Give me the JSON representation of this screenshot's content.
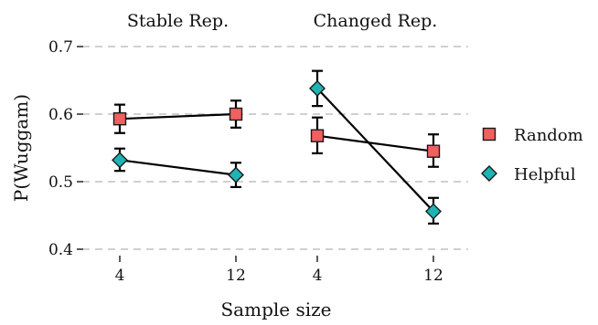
{
  "chart_data": {
    "type": "line",
    "title": "",
    "xlabel": "Sample size",
    "ylabel": "P(Wuggam)",
    "ylim": [
      0.4,
      0.7
    ],
    "yticks": [
      "0.4",
      "0.5",
      "0.6",
      "0.7"
    ],
    "grid": true,
    "legend_position": "right",
    "x_categories": [
      "4",
      "12"
    ],
    "facets": [
      {
        "title": "Stable Rep.",
        "series": [
          {
            "name": "Random",
            "values": [
              0.593,
              0.6
            ],
            "err_low": [
              0.572,
              0.58
            ],
            "err_high": [
              0.614,
              0.62
            ]
          },
          {
            "name": "Helpful",
            "values": [
              0.532,
              0.51
            ],
            "err_low": [
              0.516,
              0.492
            ],
            "err_high": [
              0.549,
              0.528
            ]
          }
        ]
      },
      {
        "title": "Changed Rep.",
        "series": [
          {
            "name": "Random",
            "values": [
              0.568,
              0.545
            ],
            "err_low": [
              0.542,
              0.522
            ],
            "err_high": [
              0.595,
              0.57
            ]
          },
          {
            "name": "Helpful",
            "values": [
              0.638,
              0.456
            ],
            "err_low": [
              0.612,
              0.438
            ],
            "err_high": [
              0.664,
              0.476
            ]
          }
        ]
      }
    ],
    "legend": [
      {
        "name": "Random",
        "marker": "square",
        "color": "#f0605f"
      },
      {
        "name": "Helpful",
        "marker": "diamond",
        "color": "#1fb3b3"
      }
    ]
  }
}
